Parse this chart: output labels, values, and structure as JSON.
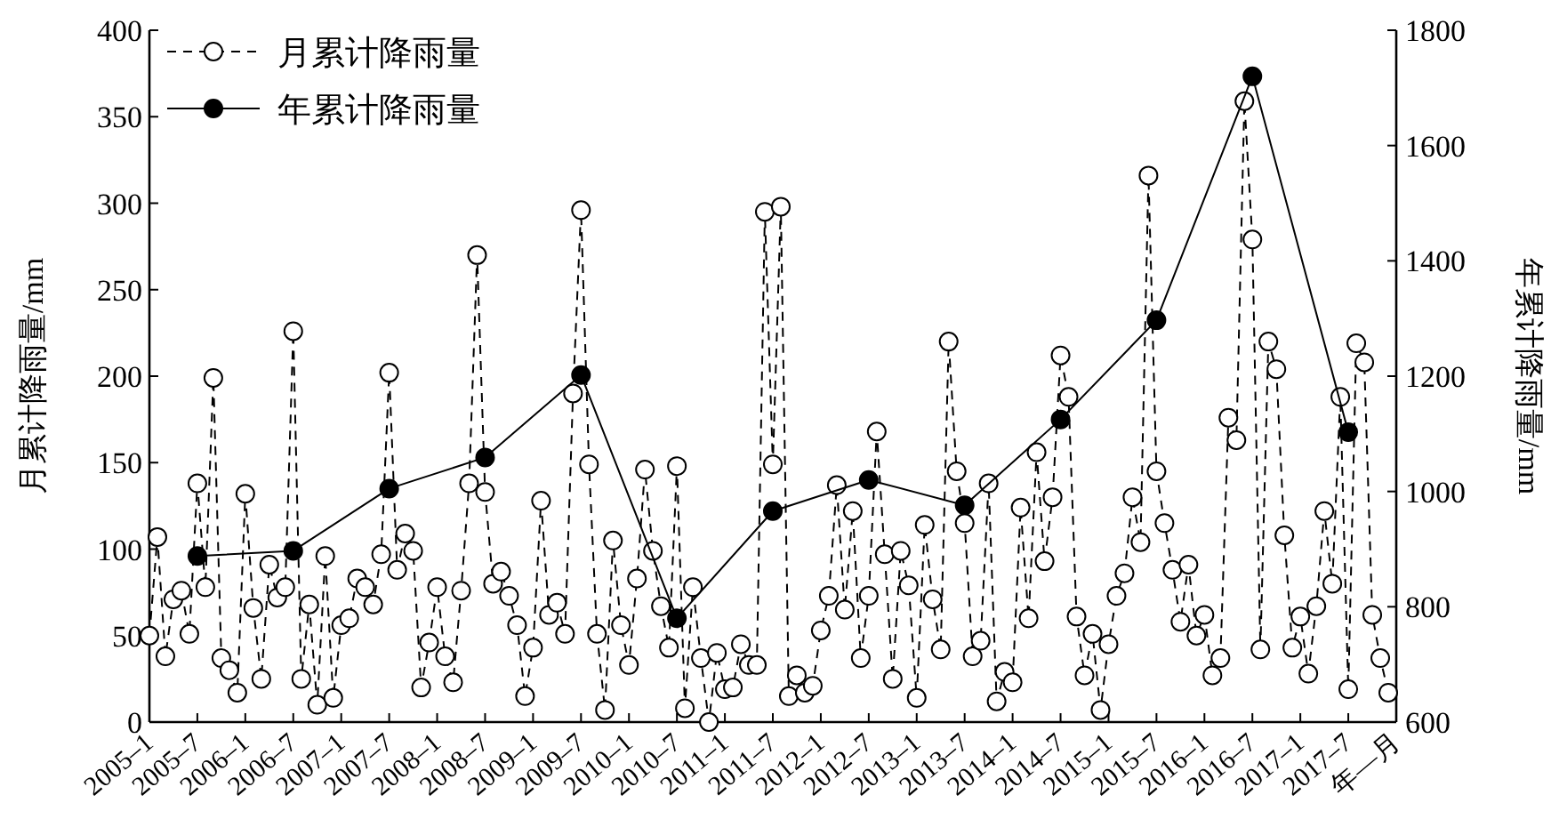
{
  "chart_data": {
    "type": "line",
    "x": [
      "2005-01",
      "2005-02",
      "2005-03",
      "2005-04",
      "2005-05",
      "2005-06",
      "2005-07",
      "2005-08",
      "2005-09",
      "2005-10",
      "2005-11",
      "2005-12",
      "2006-01",
      "2006-02",
      "2006-03",
      "2006-04",
      "2006-05",
      "2006-06",
      "2006-07",
      "2006-08",
      "2006-09",
      "2006-10",
      "2006-11",
      "2006-12",
      "2007-01",
      "2007-02",
      "2007-03",
      "2007-04",
      "2007-05",
      "2007-06",
      "2007-07",
      "2007-08",
      "2007-09",
      "2007-10",
      "2007-11",
      "2007-12",
      "2008-01",
      "2008-02",
      "2008-03",
      "2008-04",
      "2008-05",
      "2008-06",
      "2008-07",
      "2008-08",
      "2008-09",
      "2008-10",
      "2008-11",
      "2008-12",
      "2009-01",
      "2009-02",
      "2009-03",
      "2009-04",
      "2009-05",
      "2009-06",
      "2009-07",
      "2009-08",
      "2009-09",
      "2009-10",
      "2009-11",
      "2009-12",
      "2010-01",
      "2010-02",
      "2010-03",
      "2010-04",
      "2010-05",
      "2010-06",
      "2010-07",
      "2010-08",
      "2010-09",
      "2010-10",
      "2010-11",
      "2010-12",
      "2011-01",
      "2011-02",
      "2011-03",
      "2011-04",
      "2011-05",
      "2011-06",
      "2011-07",
      "2011-08",
      "2011-09",
      "2011-10",
      "2011-11",
      "2011-12",
      "2012-01",
      "2012-02",
      "2012-03",
      "2012-04",
      "2012-05",
      "2012-06",
      "2012-07",
      "2012-08",
      "2012-09",
      "2012-10",
      "2012-11",
      "2012-12",
      "2013-01",
      "2013-02",
      "2013-03",
      "2013-04",
      "2013-05",
      "2013-06",
      "2013-07",
      "2013-08",
      "2013-09",
      "2013-10",
      "2013-11",
      "2013-12",
      "2014-01",
      "2014-02",
      "2014-03",
      "2014-04",
      "2014-05",
      "2014-06",
      "2014-07",
      "2014-08",
      "2014-09",
      "2014-10",
      "2014-11",
      "2014-12",
      "2015-01",
      "2015-02",
      "2015-03",
      "2015-04",
      "2015-05",
      "2015-06",
      "2015-07",
      "2015-08",
      "2015-09",
      "2015-10",
      "2015-11",
      "2015-12",
      "2016-01",
      "2016-02",
      "2016-03",
      "2016-04",
      "2016-05",
      "2016-06",
      "2016-07",
      "2016-08",
      "2016-09",
      "2016-10",
      "2016-11",
      "2016-12",
      "2017-01",
      "2017-02",
      "2017-03",
      "2017-04",
      "2017-05",
      "2017-06",
      "2017-07",
      "2017-08",
      "2017-09",
      "2017-10",
      "2017-11",
      "2017-12"
    ],
    "series": [
      {
        "name": "月累计降雨量",
        "color": "#000000",
        "marker": "circle",
        "line_style": "dashed",
        "values": [
          50,
          107,
          38,
          71,
          76,
          51,
          138,
          78,
          199,
          37,
          30,
          17,
          132,
          66,
          25,
          91,
          72,
          78,
          226,
          25,
          68,
          10,
          96,
          14,
          56,
          60,
          83,
          78,
          68,
          97,
          202,
          88,
          109,
          99,
          20,
          46,
          78,
          38,
          23,
          76,
          138,
          270,
          133,
          80,
          87,
          73,
          56,
          15,
          43,
          128,
          62,
          69,
          51,
          190,
          296,
          149,
          51,
          7,
          105,
          56,
          33,
          83,
          146,
          99,
          67,
          43,
          148,
          8,
          78,
          37,
          0,
          40,
          19,
          20,
          45,
          33,
          33,
          295,
          149,
          298,
          15,
          27,
          17,
          21,
          53,
          73,
          137,
          65,
          122,
          37,
          73,
          168,
          97,
          25,
          99,
          79,
          14,
          114,
          71,
          42,
          220,
          145,
          115,
          38,
          47,
          138,
          12,
          29,
          23,
          124,
          60,
          156,
          93,
          130,
          212,
          188,
          61,
          27,
          51,
          7,
          45,
          73,
          86,
          130,
          104,
          316,
          145,
          115,
          88,
          58,
          91,
          50,
          62,
          27,
          37,
          176,
          163,
          359,
          279,
          42,
          220,
          204,
          108,
          43,
          61,
          28,
          67,
          122,
          80,
          188,
          19,
          219,
          208,
          62,
          37,
          17
        ]
      },
      {
        "name": "年累计降雨量",
        "color": "#000000",
        "marker": "circle",
        "line_style": "solid",
        "axis": "y2",
        "x": [
          "2005-07",
          "2006-07",
          "2007-07",
          "2008-07",
          "2009-07",
          "2010-07",
          "2011-07",
          "2012-07",
          "2013-07",
          "2014-07",
          "2015-07",
          "2016-07",
          "2017-07"
        ],
        "values": [
          888,
          897,
          1005,
          1059,
          1202,
          780,
          966,
          1020,
          976,
          1125,
          1297,
          1720,
          1103
        ]
      }
    ],
    "ylabel": "月累计降雨量/mm",
    "y2label": "年累计降雨量/mm",
    "xlim": [
      "2005-01",
      "2018-01"
    ],
    "xticks": [
      {
        "value": "2005-01",
        "label": "2005–1"
      },
      {
        "value": "2005-07",
        "label": "2005–7"
      },
      {
        "value": "2006-01",
        "label": "2006–1"
      },
      {
        "value": "2006-07",
        "label": "2006–7"
      },
      {
        "value": "2007-01",
        "label": "2007–1"
      },
      {
        "value": "2007-07",
        "label": "2007–7"
      },
      {
        "value": "2008-01",
        "label": "2008–1"
      },
      {
        "value": "2008-07",
        "label": "2008–7"
      },
      {
        "value": "2009-01",
        "label": "2009–1"
      },
      {
        "value": "2009-07",
        "label": "2009–7"
      },
      {
        "value": "2010-01",
        "label": "2010–1"
      },
      {
        "value": "2010-07",
        "label": "2010–7"
      },
      {
        "value": "2011-01",
        "label": "2011–1"
      },
      {
        "value": "2011-07",
        "label": "2011–7"
      },
      {
        "value": "2012-01",
        "label": "2012–1"
      },
      {
        "value": "2012-07",
        "label": "2012–7"
      },
      {
        "value": "2013-01",
        "label": "2013–1"
      },
      {
        "value": "2013-07",
        "label": "2013–7"
      },
      {
        "value": "2014-01",
        "label": "2014–1"
      },
      {
        "value": "2014-07",
        "label": "2014–7"
      },
      {
        "value": "2015-01",
        "label": "2015–1"
      },
      {
        "value": "2015-07",
        "label": "2015–7"
      },
      {
        "value": "2016-01",
        "label": "2016–1"
      },
      {
        "value": "2016-07",
        "label": "2016–7"
      },
      {
        "value": "2017-01",
        "label": "2017–1"
      },
      {
        "value": "2017-07",
        "label": "2017–7"
      },
      {
        "value": "2018-01",
        "label": "年—月"
      }
    ],
    "ylim": [
      0,
      400
    ],
    "yticks": [
      0,
      50,
      100,
      150,
      200,
      250,
      300,
      350,
      400
    ],
    "y2lim": [
      600,
      1800
    ],
    "y2ticks": [
      600,
      800,
      1000,
      1200,
      1400,
      1600,
      1800
    ],
    "legend": "top left",
    "grid": false
  }
}
